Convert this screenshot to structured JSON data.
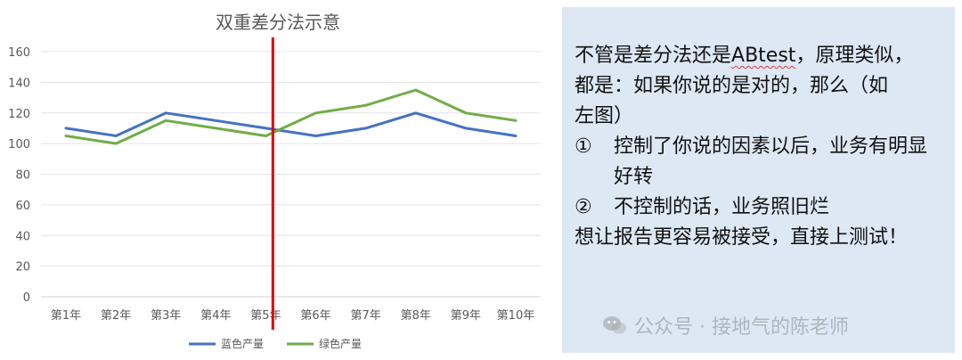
{
  "chart_data": {
    "type": "line",
    "title": "双重差分法示意",
    "categories": [
      "第1年",
      "第2年",
      "第3年",
      "第4年",
      "第5年",
      "第6年",
      "第7年",
      "第8年",
      "第9年",
      "第10年"
    ],
    "series": [
      {
        "name": "蓝色产量",
        "color": "#4472c4",
        "values": [
          110,
          105,
          120,
          115,
          110,
          105,
          110,
          120,
          110,
          105
        ]
      },
      {
        "name": "绿色产量",
        "color": "#70ad47",
        "values": [
          105,
          100,
          115,
          110,
          105,
          120,
          125,
          135,
          120,
          115
        ]
      }
    ],
    "yticks": [
      "0",
      "20",
      "40",
      "60",
      "80",
      "100",
      "120",
      "140",
      "160"
    ],
    "ylim": [
      0,
      160
    ],
    "grid": true,
    "legend": "bottom",
    "annotation": {
      "type": "vertical-line",
      "color": "#e00000",
      "at_category": "第5年"
    }
  },
  "panel": {
    "line1_pre": "不管是差分法还是",
    "line1_ab": "ABtest",
    "line1_post": "，原理类似，",
    "line2": "都是：如果你说的是对的，那么（如",
    "line3": "左图）",
    "bullet1_mark": "①",
    "bullet1_text": "控制了你说的因素以后，业务有明显好转",
    "bullet2_mark": "②",
    "bullet2_text": "不控制的话，业务照旧烂",
    "line_last": "想让报告更容易被接受，直接上测试！"
  },
  "watermark": {
    "text": "公众号 · 接地气的陈老师",
    "icon": "wechat-icon"
  }
}
